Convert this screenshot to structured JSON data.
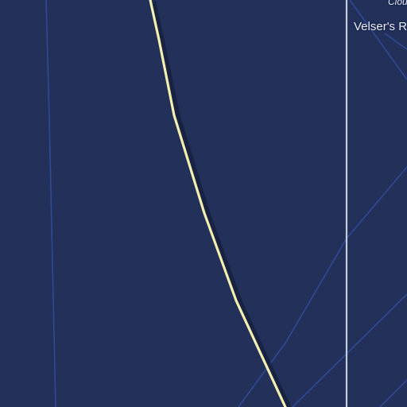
{
  "map": {
    "theme": "night",
    "colors": {
      "background": "#22305a",
      "minor_road": "#2f4a95",
      "highlight_road": "#f3efb0",
      "road_shadow": "#141c38",
      "grey_road": "#c8ccd8",
      "label_text": "#e8ecf5"
    },
    "labels": {
      "top_italic": "Clou",
      "road_name": "Velser's R"
    }
  }
}
